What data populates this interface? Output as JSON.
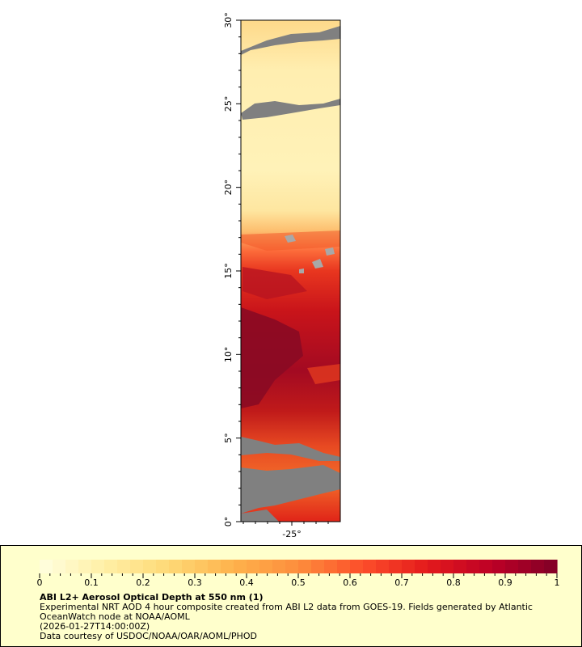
{
  "map": {
    "lat_labels": [
      "30°",
      "25°",
      "20°",
      "15°",
      "10°",
      "5°",
      "0°"
    ],
    "lon_labels": [
      "-25°"
    ],
    "lat_range": [
      0,
      30
    ],
    "missing_color": "#808080",
    "colormap": [
      "#ffffe0",
      "#ffefa6",
      "#fed976",
      "#feb24c",
      "#fd8d3c",
      "#fc4e2a",
      "#e31a1c",
      "#bd0026",
      "#800026"
    ]
  },
  "legend": {
    "ticks": [
      "0",
      "0.1",
      "0.2",
      "0.3",
      "0.4",
      "0.5",
      "0.6",
      "0.7",
      "0.8",
      "0.9",
      "1"
    ],
    "value_range": [
      0,
      1
    ],
    "title": "ABI L2+ Aerosol Optical Depth at 550 nm (1)",
    "description_line1": "Experimental NRT AOD 4 hour composite created from ABI L2 data from GOES-19. Fields generated by Atlantic",
    "description_line2": "OceanWatch node at NOAA/AOML",
    "time": "(2026-01-27T14:00:00Z)",
    "credit": "Data courtesy of USDOC/NOAA/OAR/AOML/PHOD"
  }
}
